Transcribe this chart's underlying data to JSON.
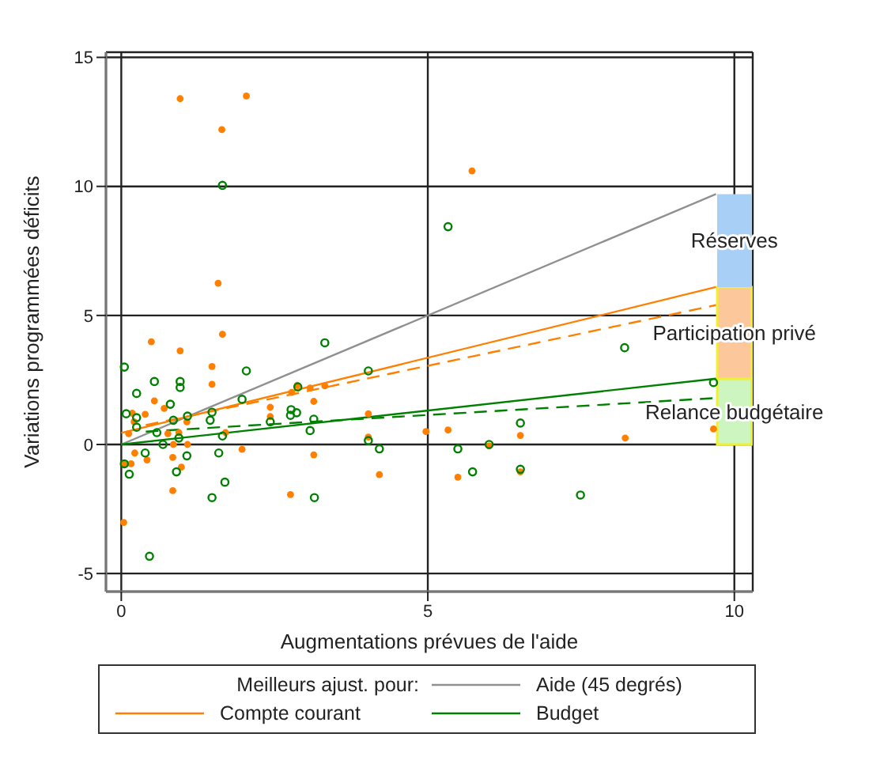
{
  "chart_data": {
    "type": "scatter",
    "xlabel": "Augmentations prévues de l'aide",
    "ylabel": "Variations programmées déficits",
    "legend_title": "Meilleurs ajust.  pour:",
    "xlim": [
      -0.25,
      10.3
    ],
    "ylim": [
      -5.7,
      15.2
    ],
    "xticks": [
      0,
      5,
      10
    ],
    "yticks": [
      -5,
      0,
      5,
      10,
      15
    ],
    "grid": true,
    "legend": "bottom",
    "stacked": true,
    "series": [
      {
        "marker": "circle",
        "color": "#ff7f00",
        "x": [
          0.96,
          2.04,
          1.64,
          1.58,
          5.72,
          1.65,
          0.49,
          0.96,
          1.48,
          1.48,
          0.54,
          0.7,
          0.39,
          0.18,
          2.87,
          2.78,
          3.08,
          3.32,
          3.14,
          2.43,
          2.43,
          4.03,
          4.03,
          1.7,
          1.97,
          0.84,
          0.98,
          0.84,
          2.76,
          3.14,
          4.21,
          0.04,
          0.04,
          0.16,
          0.22,
          0.42,
          0.85,
          1.08,
          0.94,
          0.12,
          0.21,
          0.76,
          1.07,
          4.97,
          5.33,
          6.0,
          6.51,
          6.51,
          5.49,
          8.22,
          9.66
        ],
        "values": [
          13.4,
          13.5,
          12.2,
          6.25,
          10.6,
          4.27,
          3.98,
          3.63,
          3.02,
          2.33,
          1.69,
          1.4,
          1.17,
          1.21,
          2.29,
          2.02,
          2.19,
          2.27,
          1.67,
          1.44,
          1.08,
          1.19,
          0.29,
          0.46,
          -0.19,
          -0.5,
          -0.88,
          -1.79,
          -1.94,
          -0.4,
          -1.17,
          -3.02,
          -0.75,
          -0.75,
          -0.33,
          -0.6,
          0,
          0,
          0.46,
          0.42,
          0.88,
          0.42,
          0.88,
          0.5,
          0.56,
          -0.06,
          0.35,
          -1.06,
          -1.27,
          0.25,
          0.6
        ]
      },
      {
        "marker": "circle",
        "color": "#008000",
        "x": [
          1.65,
          5.33,
          8.21,
          9.66,
          0.05,
          3.32,
          2.04,
          4.03,
          0.54,
          0.96,
          0.96,
          0.25,
          0.8,
          1.97,
          2.88,
          2.77,
          2.86,
          2.76,
          2.43,
          3.14,
          1.48,
          1.45,
          1.08,
          0.85,
          0.25,
          0.08,
          0.25,
          0.94,
          1.65,
          3.08,
          4.03,
          4.21,
          1.59,
          0.39,
          1.07,
          1.69,
          1.48,
          3.15,
          0.9,
          0.13,
          0.05,
          0.46,
          0.68,
          0.58,
          5.49,
          6.51,
          6.51,
          5.73,
          6.0,
          7.49
        ],
        "values": [
          10.04,
          8.44,
          3.75,
          2.4,
          3.0,
          3.94,
          2.85,
          2.85,
          2.44,
          2.44,
          2.21,
          1.98,
          1.56,
          1.75,
          2.23,
          1.35,
          1.23,
          1.13,
          0.88,
          0.98,
          1.25,
          0.94,
          1.1,
          0.94,
          1.04,
          1.19,
          0.67,
          0.25,
          0.33,
          0.54,
          0.15,
          -0.17,
          -0.33,
          -0.33,
          -0.44,
          -1.46,
          -2.06,
          -2.06,
          -1.06,
          -1.15,
          -0.75,
          -4.33,
          0,
          0.46,
          -0.17,
          0.83,
          -0.96,
          -1.06,
          0,
          -1.96
        ]
      },
      {
        "type": "line",
        "name": "Aide (45 degrés)",
        "color": "#909090",
        "line_style": "solid",
        "x": [
          0,
          9.7
        ],
        "values": [
          0,
          9.7
        ]
      },
      {
        "type": "line",
        "name": "Compte courant",
        "color": "#ff7f00",
        "line_style": "solid",
        "x": [
          0,
          9.7
        ],
        "values": [
          0.45,
          6.1
        ]
      },
      {
        "type": "line",
        "color": "#ff7f00",
        "line_style": "dashed",
        "x": [
          0.4,
          9.7
        ],
        "values": [
          0.75,
          5.4
        ]
      },
      {
        "type": "line",
        "name": "Budget",
        "color": "#008000",
        "line_style": "solid",
        "x": [
          0,
          9.7
        ],
        "values": [
          0,
          2.55
        ]
      },
      {
        "type": "line",
        "color": "#008000",
        "line_style": "dashed",
        "x": [
          0.4,
          9.7
        ],
        "values": [
          0.5,
          1.8
        ]
      },
      {
        "type": "bar",
        "name": "Relance budgétaire",
        "color": "#ccf5c0",
        "x": [
          10
        ],
        "values": [
          2.55
        ]
      },
      {
        "type": "bar",
        "name": "Participation privé",
        "color": "#fcc79a",
        "x": [
          10
        ],
        "values": [
          3.55
        ]
      },
      {
        "type": "bar",
        "name": "Réserves",
        "color": "#a8cff5",
        "x": [
          10
        ],
        "values": [
          3.6
        ]
      }
    ]
  }
}
